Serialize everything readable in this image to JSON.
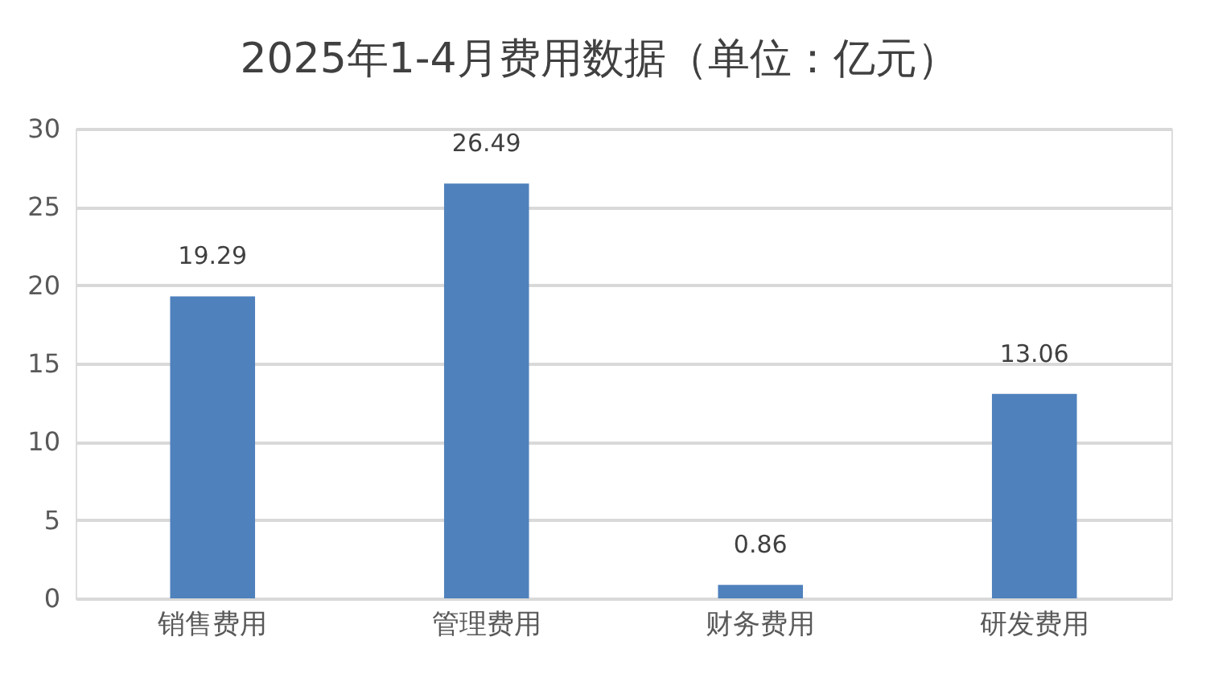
{
  "chart_data": {
    "type": "bar",
    "title": "2025年1-4月费用数据（单位：亿元）",
    "categories": [
      "销售费用",
      "管理费用",
      "财务费用",
      "研发费用"
    ],
    "values": [
      19.29,
      26.49,
      0.86,
      13.06
    ],
    "color": "#4f81bd",
    "ylim": [
      0,
      30
    ],
    "yticks": [
      0,
      5,
      10,
      15,
      20,
      25,
      30
    ],
    "grid": "y",
    "data_labels": true
  }
}
